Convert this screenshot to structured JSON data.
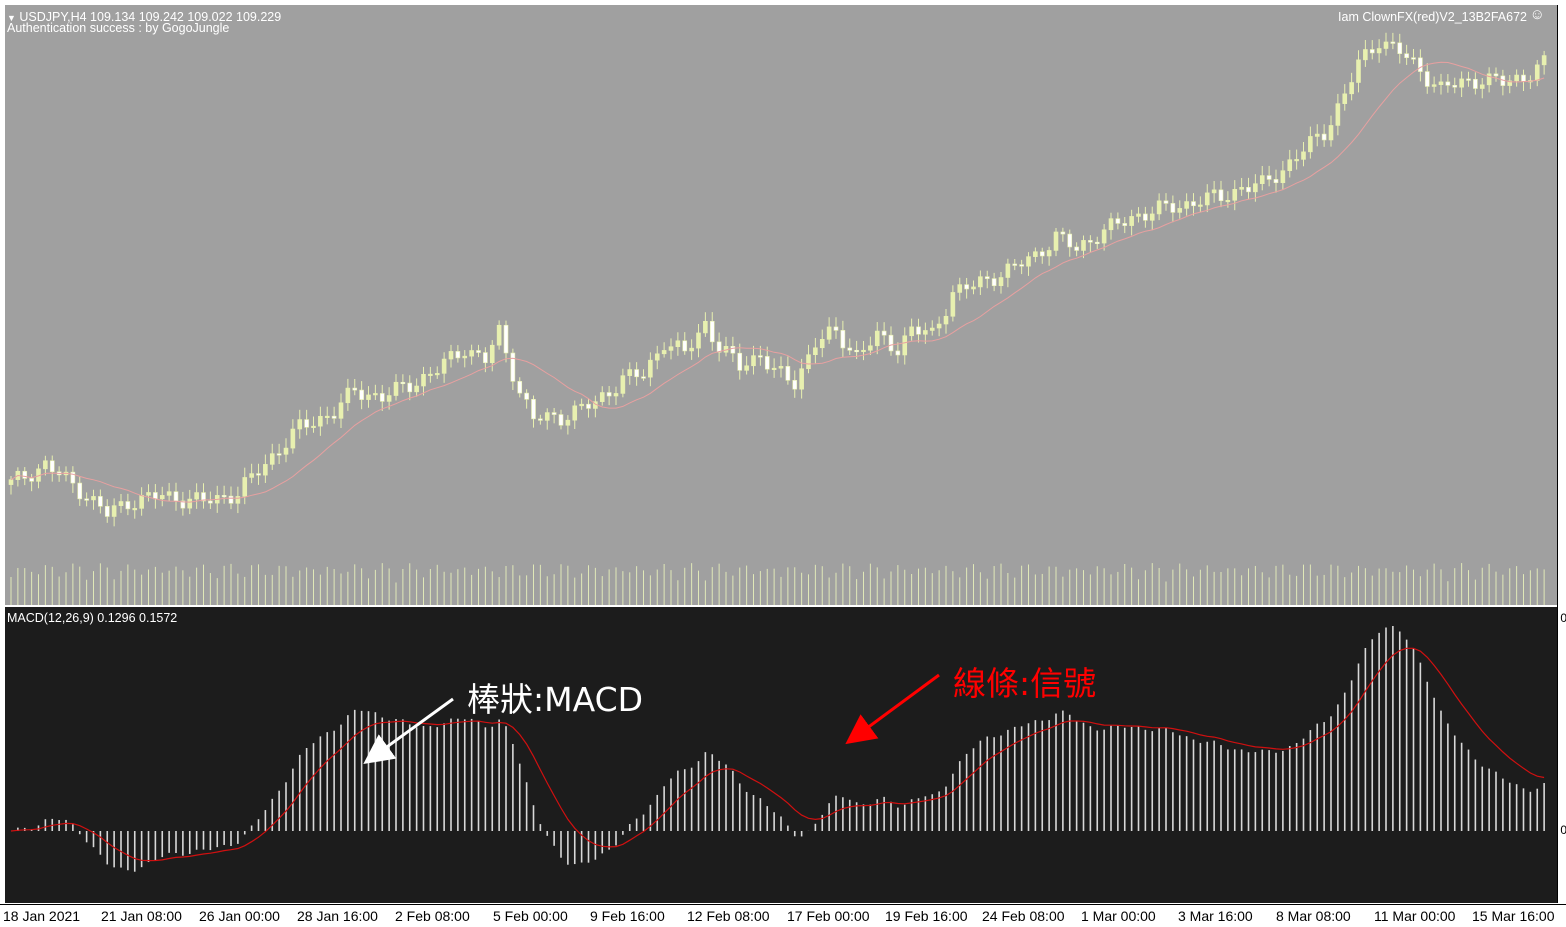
{
  "header": {
    "symbol_line": "USDJPY,H4  109.134 109.242 109.022 109.229",
    "auth_line": "Authentication success : by GogoJungle",
    "ea_name": "Iam ClownFX(red)V2_13B2FA672",
    "ea_icon": "smiley-icon"
  },
  "macd": {
    "label": "MACD(12,26,9) 0.1296 0.1572",
    "zero_label": "0",
    "top_label": "0"
  },
  "annotations": {
    "histogram_label": "棒狀:MACD",
    "signal_label": "線條:信號",
    "histogram_color": "#ffffff",
    "signal_color": "#ff0000"
  },
  "time_axis": {
    "labels": [
      "18 Jan 2021",
      "21 Jan 08:00",
      "26 Jan 00:00",
      "28 Jan 16:00",
      "2 Feb 08:00",
      "5 Feb 00:00",
      "9 Feb 16:00",
      "12 Feb 08:00",
      "17 Feb 00:00",
      "19 Feb 16:00",
      "24 Feb 08:00",
      "1 Mar 00:00",
      "3 Mar 16:00",
      "8 Mar 08:00",
      "11 Mar 00:00",
      "15 Mar 16:00"
    ]
  },
  "colors": {
    "price_background": "#a0a0a0",
    "macd_background": "#1c1c1c",
    "candle_color": "#e8f0b0",
    "ma_color": "#e8a0a0",
    "volume_color": "#e0e8b8",
    "histogram_color": "#d8d8d8",
    "signal_color": "#d01010"
  },
  "chart_data": {
    "type": "candlestick",
    "symbol": "USDJPY",
    "timeframe": "H4",
    "price_path": [
      [
        0,
        103.7
      ],
      [
        5,
        103.85
      ],
      [
        10,
        103.65
      ],
      [
        14,
        103.45
      ],
      [
        17,
        103.55
      ],
      [
        22,
        103.6
      ],
      [
        28,
        103.55
      ],
      [
        33,
        103.62
      ],
      [
        38,
        103.92
      ],
      [
        42,
        104.15
      ],
      [
        47,
        104.28
      ],
      [
        50,
        104.45
      ],
      [
        54,
        104.4
      ],
      [
        58,
        104.5
      ],
      [
        62,
        104.62
      ],
      [
        66,
        104.8
      ],
      [
        69,
        104.7
      ],
      [
        71,
        104.92
      ],
      [
        74,
        104.45
      ],
      [
        76,
        104.22
      ],
      [
        80,
        104.24
      ],
      [
        85,
        104.35
      ],
      [
        89,
        104.55
      ],
      [
        92,
        104.58
      ],
      [
        95,
        104.85
      ],
      [
        98,
        104.75
      ],
      [
        101,
        105.0
      ],
      [
        103,
        104.8
      ],
      [
        106,
        104.65
      ],
      [
        109,
        104.75
      ],
      [
        111,
        104.6
      ],
      [
        114,
        104.52
      ],
      [
        117,
        104.84
      ],
      [
        120,
        104.92
      ],
      [
        123,
        104.75
      ],
      [
        126,
        104.88
      ],
      [
        129,
        104.8
      ],
      [
        131,
        104.95
      ],
      [
        134,
        104.9
      ],
      [
        137,
        105.25
      ],
      [
        140,
        105.3
      ],
      [
        143,
        105.38
      ],
      [
        146,
        105.45
      ],
      [
        149,
        105.55
      ],
      [
        152,
        105.7
      ],
      [
        155,
        105.6
      ],
      [
        158,
        105.72
      ],
      [
        161,
        105.8
      ],
      [
        164,
        105.88
      ],
      [
        167,
        105.92
      ],
      [
        170,
        105.95
      ],
      [
        173,
        106.0
      ],
      [
        176,
        106.02
      ],
      [
        179,
        106.1
      ],
      [
        182,
        106.12
      ],
      [
        185,
        106.25
      ],
      [
        188,
        106.4
      ],
      [
        191,
        106.55
      ],
      [
        194,
        106.85
      ],
      [
        196,
        107.1
      ],
      [
        199,
        107.3
      ],
      [
        202,
        107.2
      ],
      [
        205,
        107.05
      ],
      [
        208,
        106.9
      ],
      [
        211,
        106.95
      ],
      [
        214,
        106.98
      ],
      [
        217,
        106.95
      ],
      [
        220,
        107.0
      ],
      [
        223,
        107.1
      ]
    ],
    "y_range_price": [
      103.2,
      107.5
    ],
    "bars": 224,
    "macd": {
      "fast": 12,
      "slow": 26,
      "signal": 9,
      "last_macd": 0.1296,
      "last_signal": 0.1572
    }
  }
}
